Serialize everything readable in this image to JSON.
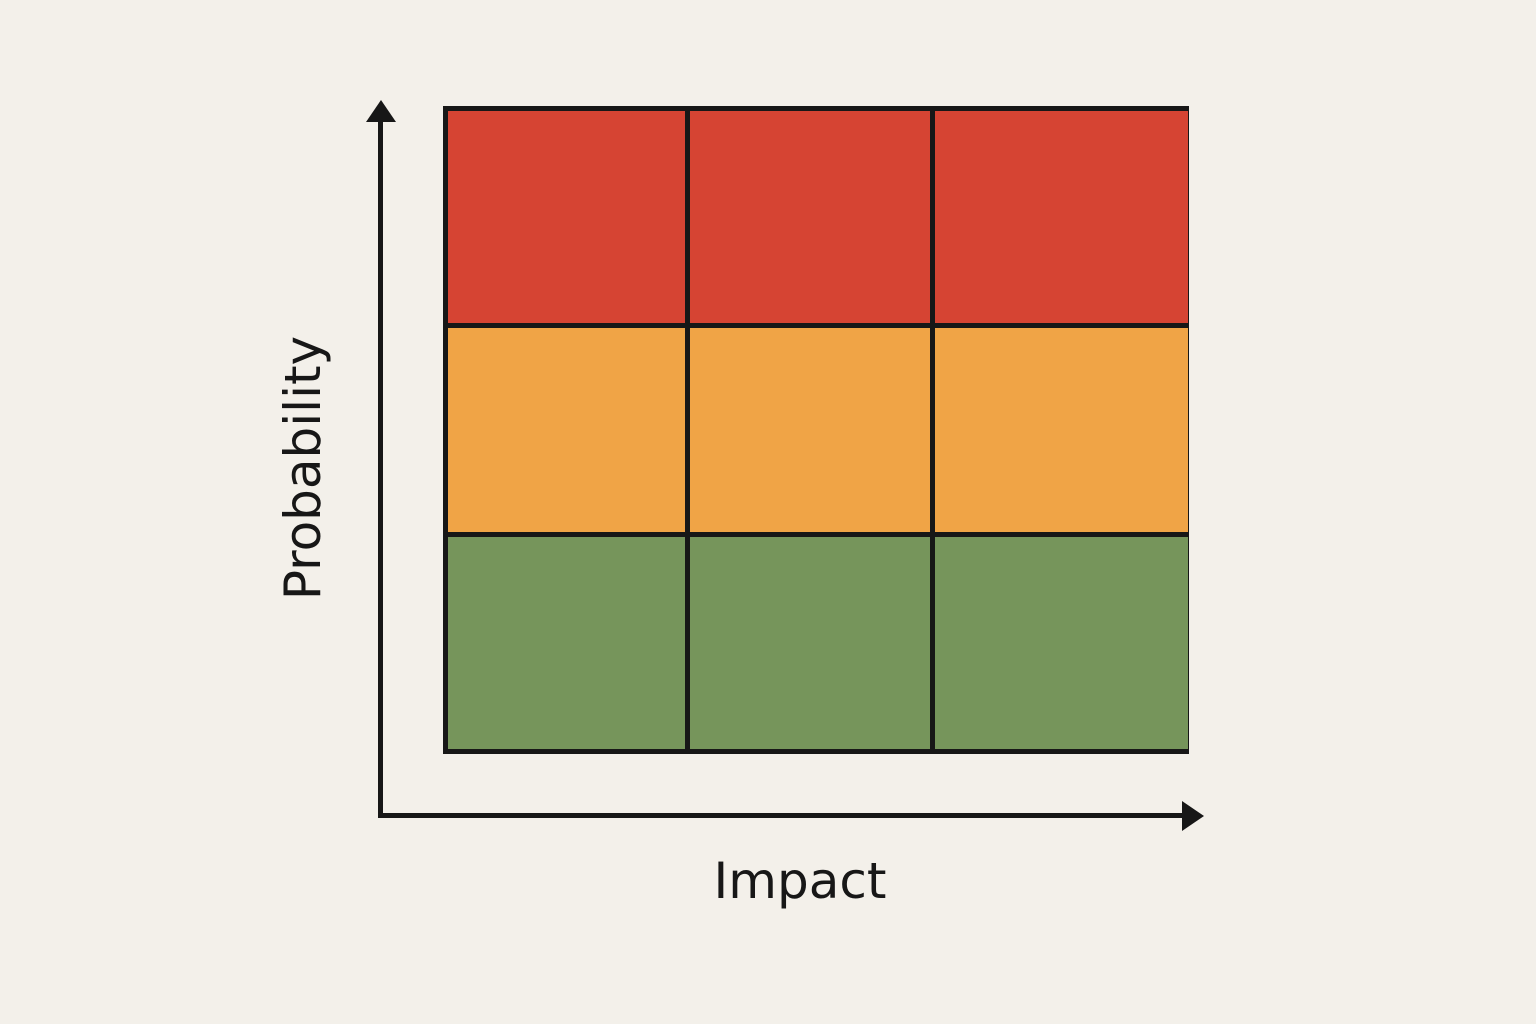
{
  "diagram": {
    "type": "risk-matrix",
    "rows": 3,
    "cols": 3,
    "x_axis_label": "Impact",
    "y_axis_label": "Probability",
    "colors": {
      "background": "#f3f0ea",
      "high": "#d64433",
      "medium": "#f0a446",
      "low": "#76955b",
      "lines": "#171717"
    },
    "cells": [
      [
        "high",
        "high",
        "high"
      ],
      [
        "medium",
        "medium",
        "medium"
      ],
      [
        "low",
        "low",
        "low"
      ]
    ]
  }
}
